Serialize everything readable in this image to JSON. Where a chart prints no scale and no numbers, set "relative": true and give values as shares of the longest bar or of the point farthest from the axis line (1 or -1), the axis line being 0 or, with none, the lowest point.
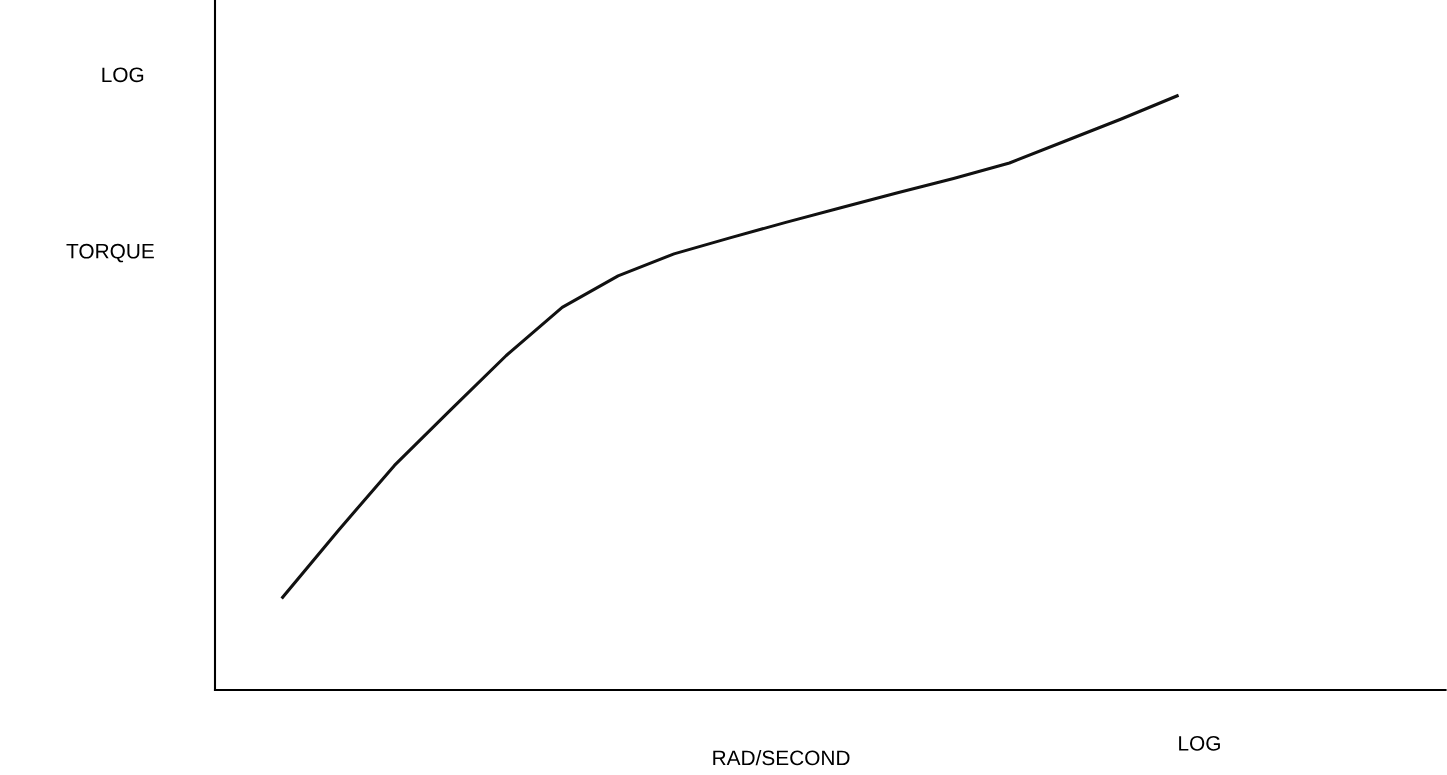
{
  "chart_data": {
    "type": "line",
    "relative": true,
    "ylabel": "TORQUE",
    "xlabel": "RAD/SECOND",
    "annotations": [
      "LOG",
      "LOG"
    ],
    "categories": [
      null,
      null,
      null,
      null,
      null,
      null,
      null,
      null,
      null,
      null,
      null,
      null,
      null,
      null,
      null,
      null,
      null
    ],
    "series": [
      {
        "color": "#111111",
        "values": [
          0.156,
          0.269,
          0.378,
          0.471,
          0.563,
          0.644,
          0.697,
          0.734,
          0.761,
          0.787,
          0.812,
          0.837,
          0.861,
          0.887,
          0.924,
          0.961,
          1.0
        ]
      }
    ],
    "grid": false,
    "legend": false,
    "marker": "none",
    "line_style": "solid"
  }
}
